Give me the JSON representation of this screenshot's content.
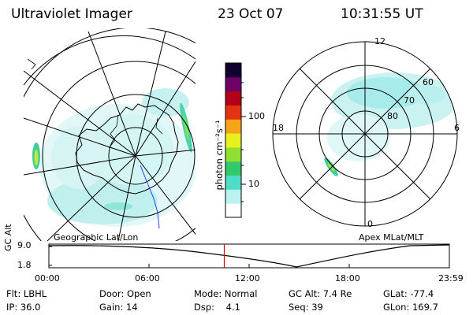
{
  "header": {
    "instrument": "Ultraviolet Imager",
    "date": "23 Oct 07",
    "time": "10:31:55 UT"
  },
  "left_panel": {
    "caption": "Geographic Lat/Lon"
  },
  "colorbar": {
    "label": "photon cm⁻²s⁻¹",
    "ticks": [
      "100",
      "10"
    ],
    "scale": "log",
    "colors": [
      "#ffffff",
      "#b9f3f0",
      "#4fdcc8",
      "#34c86c",
      "#8fe030",
      "#e9f020",
      "#f8a418",
      "#e23412",
      "#b20018",
      "#6e0066",
      "#12002e"
    ]
  },
  "right_panel": {
    "caption": "Apex MLat/MLT",
    "mlt_labels": [
      "12",
      "18",
      "6",
      "0"
    ],
    "mlat_labels": [
      "60",
      "70",
      "80"
    ]
  },
  "timeline": {
    "y_axis_label": "GC Alt",
    "y_ticks": [
      "9.0",
      "1.8"
    ],
    "x_ticks": [
      "00:00",
      "06:00",
      "12:00",
      "18:00",
      "23:59"
    ],
    "marker_time_fraction": 0.438,
    "marker_color": "#e00000"
  },
  "info": {
    "row1": [
      {
        "label": "Flt:",
        "value": "LBHL"
      },
      {
        "label": "Door:",
        "value": "Open"
      },
      {
        "label": "Mode:",
        "value": "Normal"
      },
      {
        "label": "GC Alt:",
        "value": "7.4 Re"
      },
      {
        "label": "GLat:",
        "value": "-77.4"
      }
    ],
    "row2": [
      {
        "label": "IP:",
        "value": "36.0"
      },
      {
        "label": "Gain:",
        "value": "14"
      },
      {
        "label": "Dsp:",
        "value": "4.1"
      },
      {
        "label": "Seq:",
        "value": "39"
      },
      {
        "label": "GLon:",
        "value": "169.7"
      }
    ]
  }
}
